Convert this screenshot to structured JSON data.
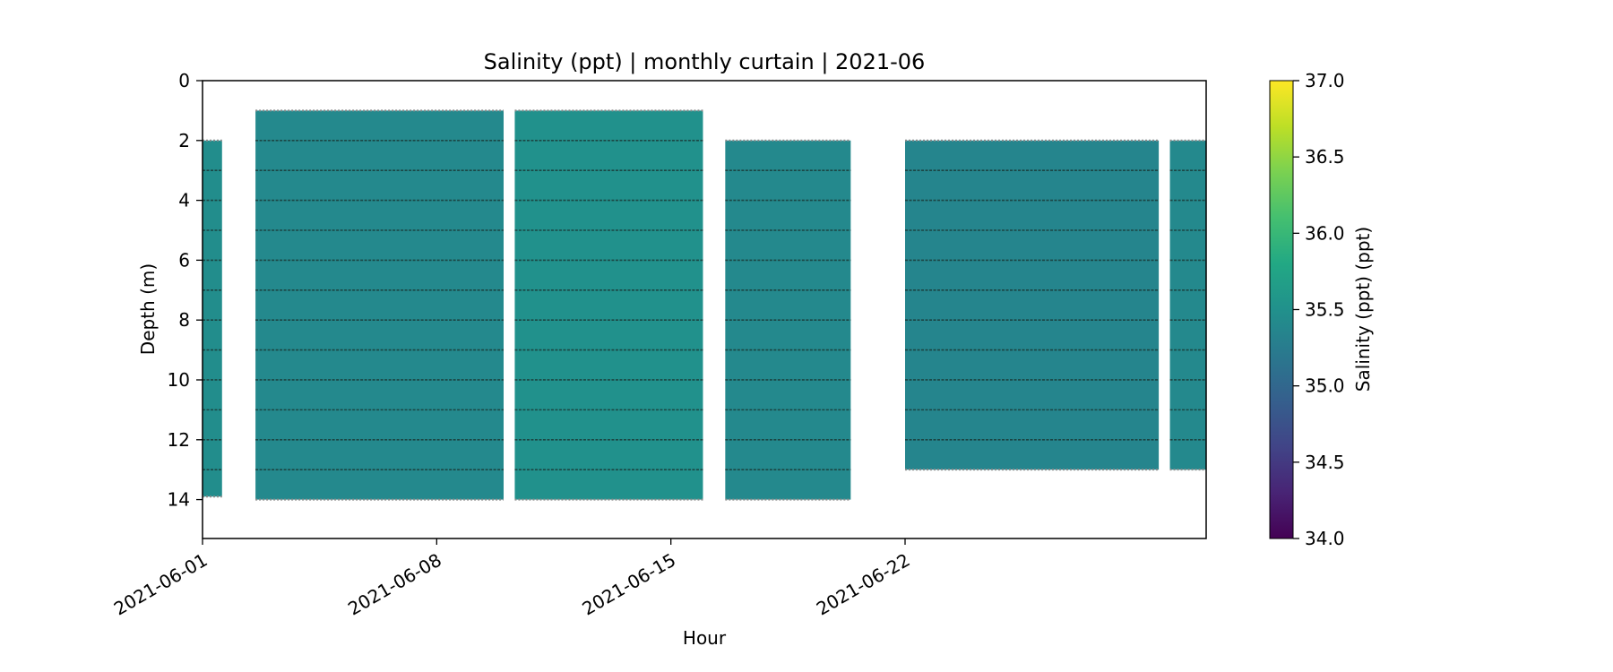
{
  "chart_data": {
    "type": "heatmap",
    "title": "Salinity (ppt) | monthly curtain | 2021-06",
    "xlabel": "Hour",
    "ylabel": "Depth (m)",
    "x_ticks": [
      "2021-06-01",
      "2021-06-08",
      "2021-06-15",
      "2021-06-22"
    ],
    "x_range": [
      "2021-06-01",
      "2021-07-01"
    ],
    "y_range": [
      0,
      15.3
    ],
    "y_inverted": true,
    "y_ticks": [
      0,
      2,
      4,
      6,
      8,
      10,
      12,
      14
    ],
    "colorbar": {
      "label": "Salinity (ppt) (ppt)",
      "range": [
        34.0,
        37.0
      ],
      "ticks": [
        34.0,
        34.5,
        35.0,
        35.5,
        36.0,
        36.5,
        37.0
      ],
      "colormap": "viridis"
    },
    "sensor_depths_m": [
      1,
      2,
      3,
      4,
      5,
      6,
      7,
      8,
      9,
      10,
      11,
      12,
      13,
      14
    ],
    "data_segments": [
      {
        "start": "2021-06-01T00:00",
        "end": "2021-06-01T14:00",
        "top_m": 2.0,
        "bottom_m": 13.9,
        "salinity": 35.45
      },
      {
        "start": "2021-06-02T14:00",
        "end": "2021-06-10T00:00",
        "top_m": 1.0,
        "bottom_m": 14.0,
        "salinity": 35.4
      },
      {
        "start": "2021-06-10T08:00",
        "end": "2021-06-15T23:00",
        "top_m": 1.0,
        "bottom_m": 14.0,
        "salinity": 35.5
      },
      {
        "start": "2021-06-16T15:00",
        "end": "2021-06-20T09:00",
        "top_m": 2.0,
        "bottom_m": 14.0,
        "salinity": 35.4
      },
      {
        "start": "2021-06-22T00:00",
        "end": "2021-06-29T14:00",
        "top_m": 2.0,
        "bottom_m": 13.0,
        "salinity": 35.35
      },
      {
        "start": "2021-06-29T22:00",
        "end": "2021-07-01T00:00",
        "top_m": 2.0,
        "bottom_m": 13.0,
        "salinity": 35.4
      }
    ],
    "grid": false,
    "legend": "none"
  }
}
